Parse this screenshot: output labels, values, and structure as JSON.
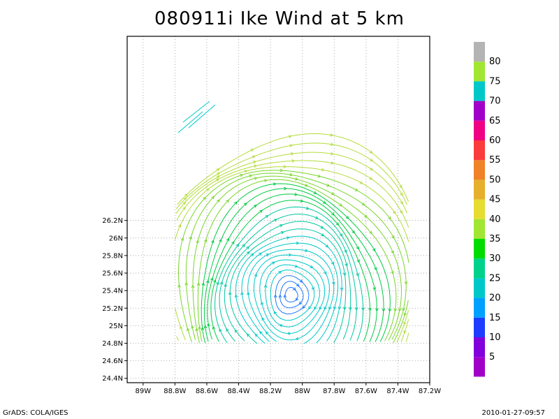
{
  "title": "080911i Ike Wind at 5 km",
  "footer": {
    "left": "GrADS: COLA/IGES",
    "right": "2010-01-27-09:57"
  },
  "chart_data": {
    "type": "streamline",
    "title": "080911i Ike Wind at 5 km",
    "xlim": [
      -89.1,
      -87.2
    ],
    "ylim": [
      24.35,
      28.3
    ],
    "x_ticks": [
      -89,
      -88.8,
      -88.6,
      -88.4,
      -88.2,
      -88,
      -87.8,
      -87.6,
      -87.4,
      -87.2
    ],
    "x_tick_labels": [
      "89W",
      "88.8W",
      "88.6W",
      "88.4W",
      "88.2W",
      "88W",
      "87.8W",
      "87.6W",
      "87.4W",
      "87.2W"
    ],
    "y_ticks": [
      24.4,
      24.6,
      24.8,
      25,
      25.2,
      25.4,
      25.6,
      25.8,
      26,
      26.2
    ],
    "y_tick_labels": [
      "24.4N",
      "24.6N",
      "24.8N",
      "25N",
      "25.2N",
      "25.4N",
      "25.6N",
      "25.8N",
      "26N",
      "26.2N"
    ],
    "grid": true,
    "circulation": "cyclonic (counter-clockwise)",
    "center": {
      "lon": -88.07,
      "lat": 25.35
    },
    "colorbar": {
      "labels": [
        "5",
        "10",
        "15",
        "20",
        "25",
        "30",
        "35",
        "40",
        "45",
        "50",
        "55",
        "60",
        "65",
        "70",
        "75",
        "80"
      ],
      "colors": [
        "#a000c8",
        "#8200dc",
        "#1e3cff",
        "#00a0ff",
        "#00c8c8",
        "#00d28c",
        "#00dc00",
        "#a0e632",
        "#e6dc32",
        "#e6af2d",
        "#f08228",
        "#fa3c3c",
        "#f00082",
        "#a000c8",
        "#00c8c8",
        "#a0e632",
        "#b4b4b4"
      ]
    }
  }
}
